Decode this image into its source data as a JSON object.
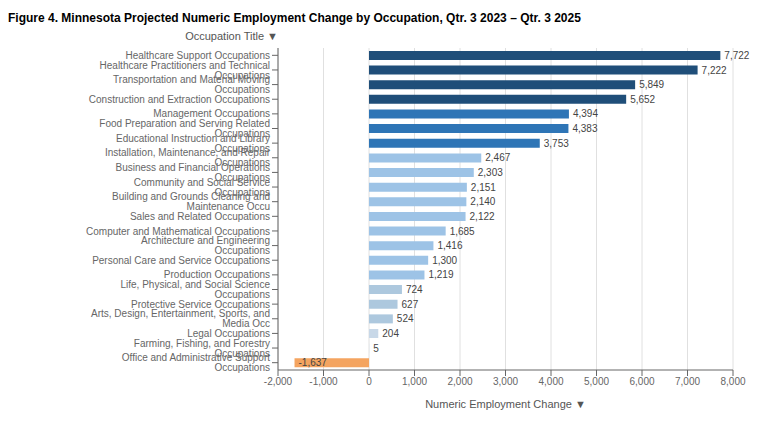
{
  "chart_data": {
    "type": "bar",
    "orientation": "horizontal",
    "title": "Figure 4. Minnesota Projected Numeric Employment Change by Occupation, Qtr. 3 2023 – Qtr. 3 2025",
    "xlabel": "Numeric Employment Change ▼",
    "ylabel": "Occupation Title ▼",
    "categories": [
      "Office and Administrative Support Occupations",
      "Farming, Fishing, and Forestry Occupations",
      "Legal Occupations",
      "Arts, Design, Entertainment, Sports, and Media Occ",
      "Protective Service Occupations",
      "Life, Physical, and Social Science Occupations",
      "Production Occupations",
      "Personal Care and Service Occupations",
      "Architecture and Engineering Occupations",
      "Computer and Mathematical Occupations",
      "Sales and Related Occupations",
      "Building and Grounds Cleaning and Maintenance Occu",
      "Community and Social Service Occupations",
      "Business and Financial Operations Occupations",
      "Installation, Maintenance, and Repair Occupations",
      "Educational Instruction and Library Occupations",
      "Food Preparation and Serving Related Occupations",
      "Management Occupations",
      "Construction and Extraction Occupations",
      "Transportation and Material Moving Occupations",
      "Healthcare Practitioners and Technical Occupations",
      "Healthcare Support Occupations"
    ],
    "values": [
      -1637,
      5,
      204,
      524,
      627,
      724,
      1219,
      1300,
      1416,
      1685,
      2122,
      2140,
      2151,
      2303,
      2467,
      3753,
      4383,
      4394,
      5652,
      5849,
      7222,
      7722
    ],
    "value_labels": [
      "-1,637",
      "5",
      "204",
      "524",
      "627",
      "724",
      "1,219",
      "1,300",
      "1,416",
      "1,685",
      "2,122",
      "2,140",
      "2,151",
      "2,303",
      "2,467",
      "3,753",
      "4,383",
      "4,394",
      "5,652",
      "5,849",
      "7,222",
      "7,722"
    ],
    "data_labels": true,
    "colors": [
      "#f4a460",
      "#d6e4f0",
      "#c8d8e8",
      "#adc8de",
      "#adc8de",
      "#adc8de",
      "#9dc3e6",
      "#9dc3e6",
      "#9dc3e6",
      "#9dc3e6",
      "#9dc3e6",
      "#9dc3e6",
      "#9dc3e6",
      "#9dc3e6",
      "#9dc3e6",
      "#2e75b6",
      "#2e75b6",
      "#2e75b6",
      "#1f4e79",
      "#1f4e79",
      "#1f4e79",
      "#1f4e79"
    ],
    "xlim": [
      -2000,
      8000
    ],
    "xticks": [
      {
        "value": -2000,
        "label": "-2,000"
      },
      {
        "value": -1000,
        "label": "-1,000"
      },
      0,
      {
        "value": 1000,
        "label": "1,000"
      },
      {
        "value": 2000,
        "label": "2,000"
      },
      {
        "value": 3000,
        "label": "3,000"
      },
      {
        "value": 4000,
        "label": "4,000"
      },
      {
        "value": 5000,
        "label": "5,000"
      },
      {
        "value": 6000,
        "label": "6,000"
      },
      {
        "value": 7000,
        "label": "7,000"
      },
      {
        "value": 8000,
        "label": "8,000"
      }
    ],
    "grid": true
  }
}
